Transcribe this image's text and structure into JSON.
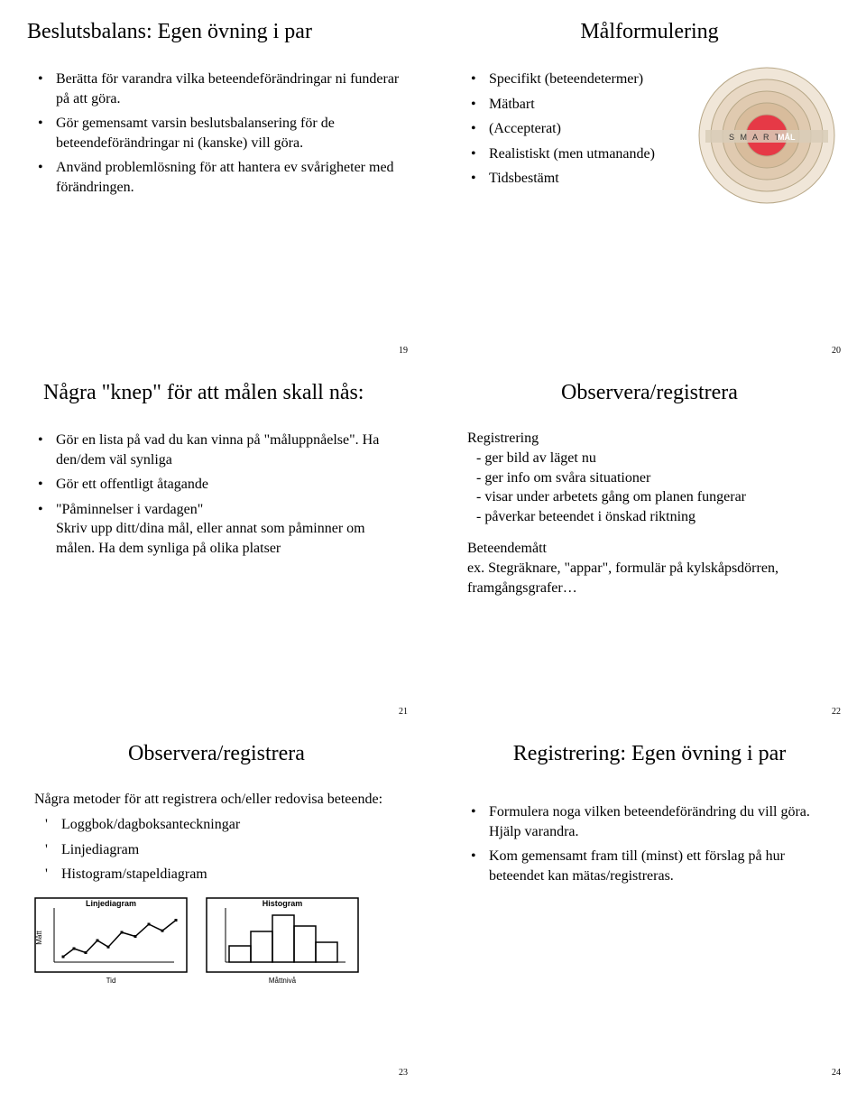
{
  "slides": {
    "s19": {
      "title": "Beslutsbalans: Egen övning i par",
      "items": [
        "Berätta för varandra vilka beteendeförändringar ni funderar på att göra.",
        "Gör gemensamt varsin beslutsbalansering för de beteendeförändringar ni (kanske) vill göra.",
        "Använd problemlösning för att hantera ev svårigheter med förändringen."
      ],
      "page": "19"
    },
    "s20": {
      "title": "Målformulering",
      "items": [
        "Specifikt (beteendetermer)",
        "Mätbart",
        "(Accepterat)",
        "Realistiskt (men utmanande)",
        "Tidsbestämt"
      ],
      "page": "20",
      "target": {
        "rings": [
          "#f0e6d8",
          "#e8d8c4",
          "#e0cab0",
          "#d8bc9c",
          "#e63946"
        ],
        "center_text": "MÅL",
        "band_text": "S M A R T"
      }
    },
    "s21": {
      "title": "Några \"knep\" för att målen skall nås:",
      "items": [
        {
          "main": "Gör en lista på vad du kan vinna på \"måluppnåelse\". Ha den/dem väl synliga"
        },
        {
          "main": "Gör ett offentligt åtagande"
        },
        {
          "main": "\"Påminnelser i vardagen\"",
          "sub": "Skriv upp ditt/dina mål, eller annat som påminner om målen. Ha dem synliga på olika platser"
        }
      ],
      "page": "21"
    },
    "s22": {
      "title": "Observera/registrera",
      "reg_heading": "Registrering",
      "reg_items": [
        "- ger bild av läget nu",
        "- ger info om svåra situationer",
        "- visar under arbetets gång om planen fungerar",
        "- påverkar beteendet i önskad riktning"
      ],
      "bet_heading": "Beteendemått",
      "bet_text": "ex. Stegräknare, \"appar\", formulär på kylskåpsdörren, framgångsgrafer…",
      "page": "22"
    },
    "s23": {
      "title": "Observera/registrera",
      "intro": "Några metoder för att registrera och/eller redovisa beteende:",
      "items": [
        "Loggbok/dagboksanteckningar",
        "Linjediagram",
        "Histogram/stapeldiagram"
      ],
      "line_chart": {
        "title": "Linjediagram",
        "ylabel": "Mått",
        "xlabel": "Tid",
        "points": [
          [
            10,
            60
          ],
          [
            22,
            50
          ],
          [
            35,
            55
          ],
          [
            48,
            40
          ],
          [
            60,
            48
          ],
          [
            75,
            30
          ],
          [
            90,
            35
          ],
          [
            105,
            20
          ],
          [
            120,
            28
          ],
          [
            135,
            15
          ]
        ],
        "stroke": "#000000"
      },
      "histogram": {
        "title": "Histogram",
        "xlabel": "Måttnivå",
        "bars": [
          18,
          34,
          52,
          40,
          22
        ],
        "stroke": "#000000"
      },
      "page": "23"
    },
    "s24": {
      "title": "Registrering: Egen övning i par",
      "items": [
        "Formulera noga vilken beteendeförändring du vill göra. Hjälp varandra.",
        "Kom gemensamt fram till (minst) ett förslag på hur beteendet kan mätas/registreras."
      ],
      "page": "24"
    }
  }
}
